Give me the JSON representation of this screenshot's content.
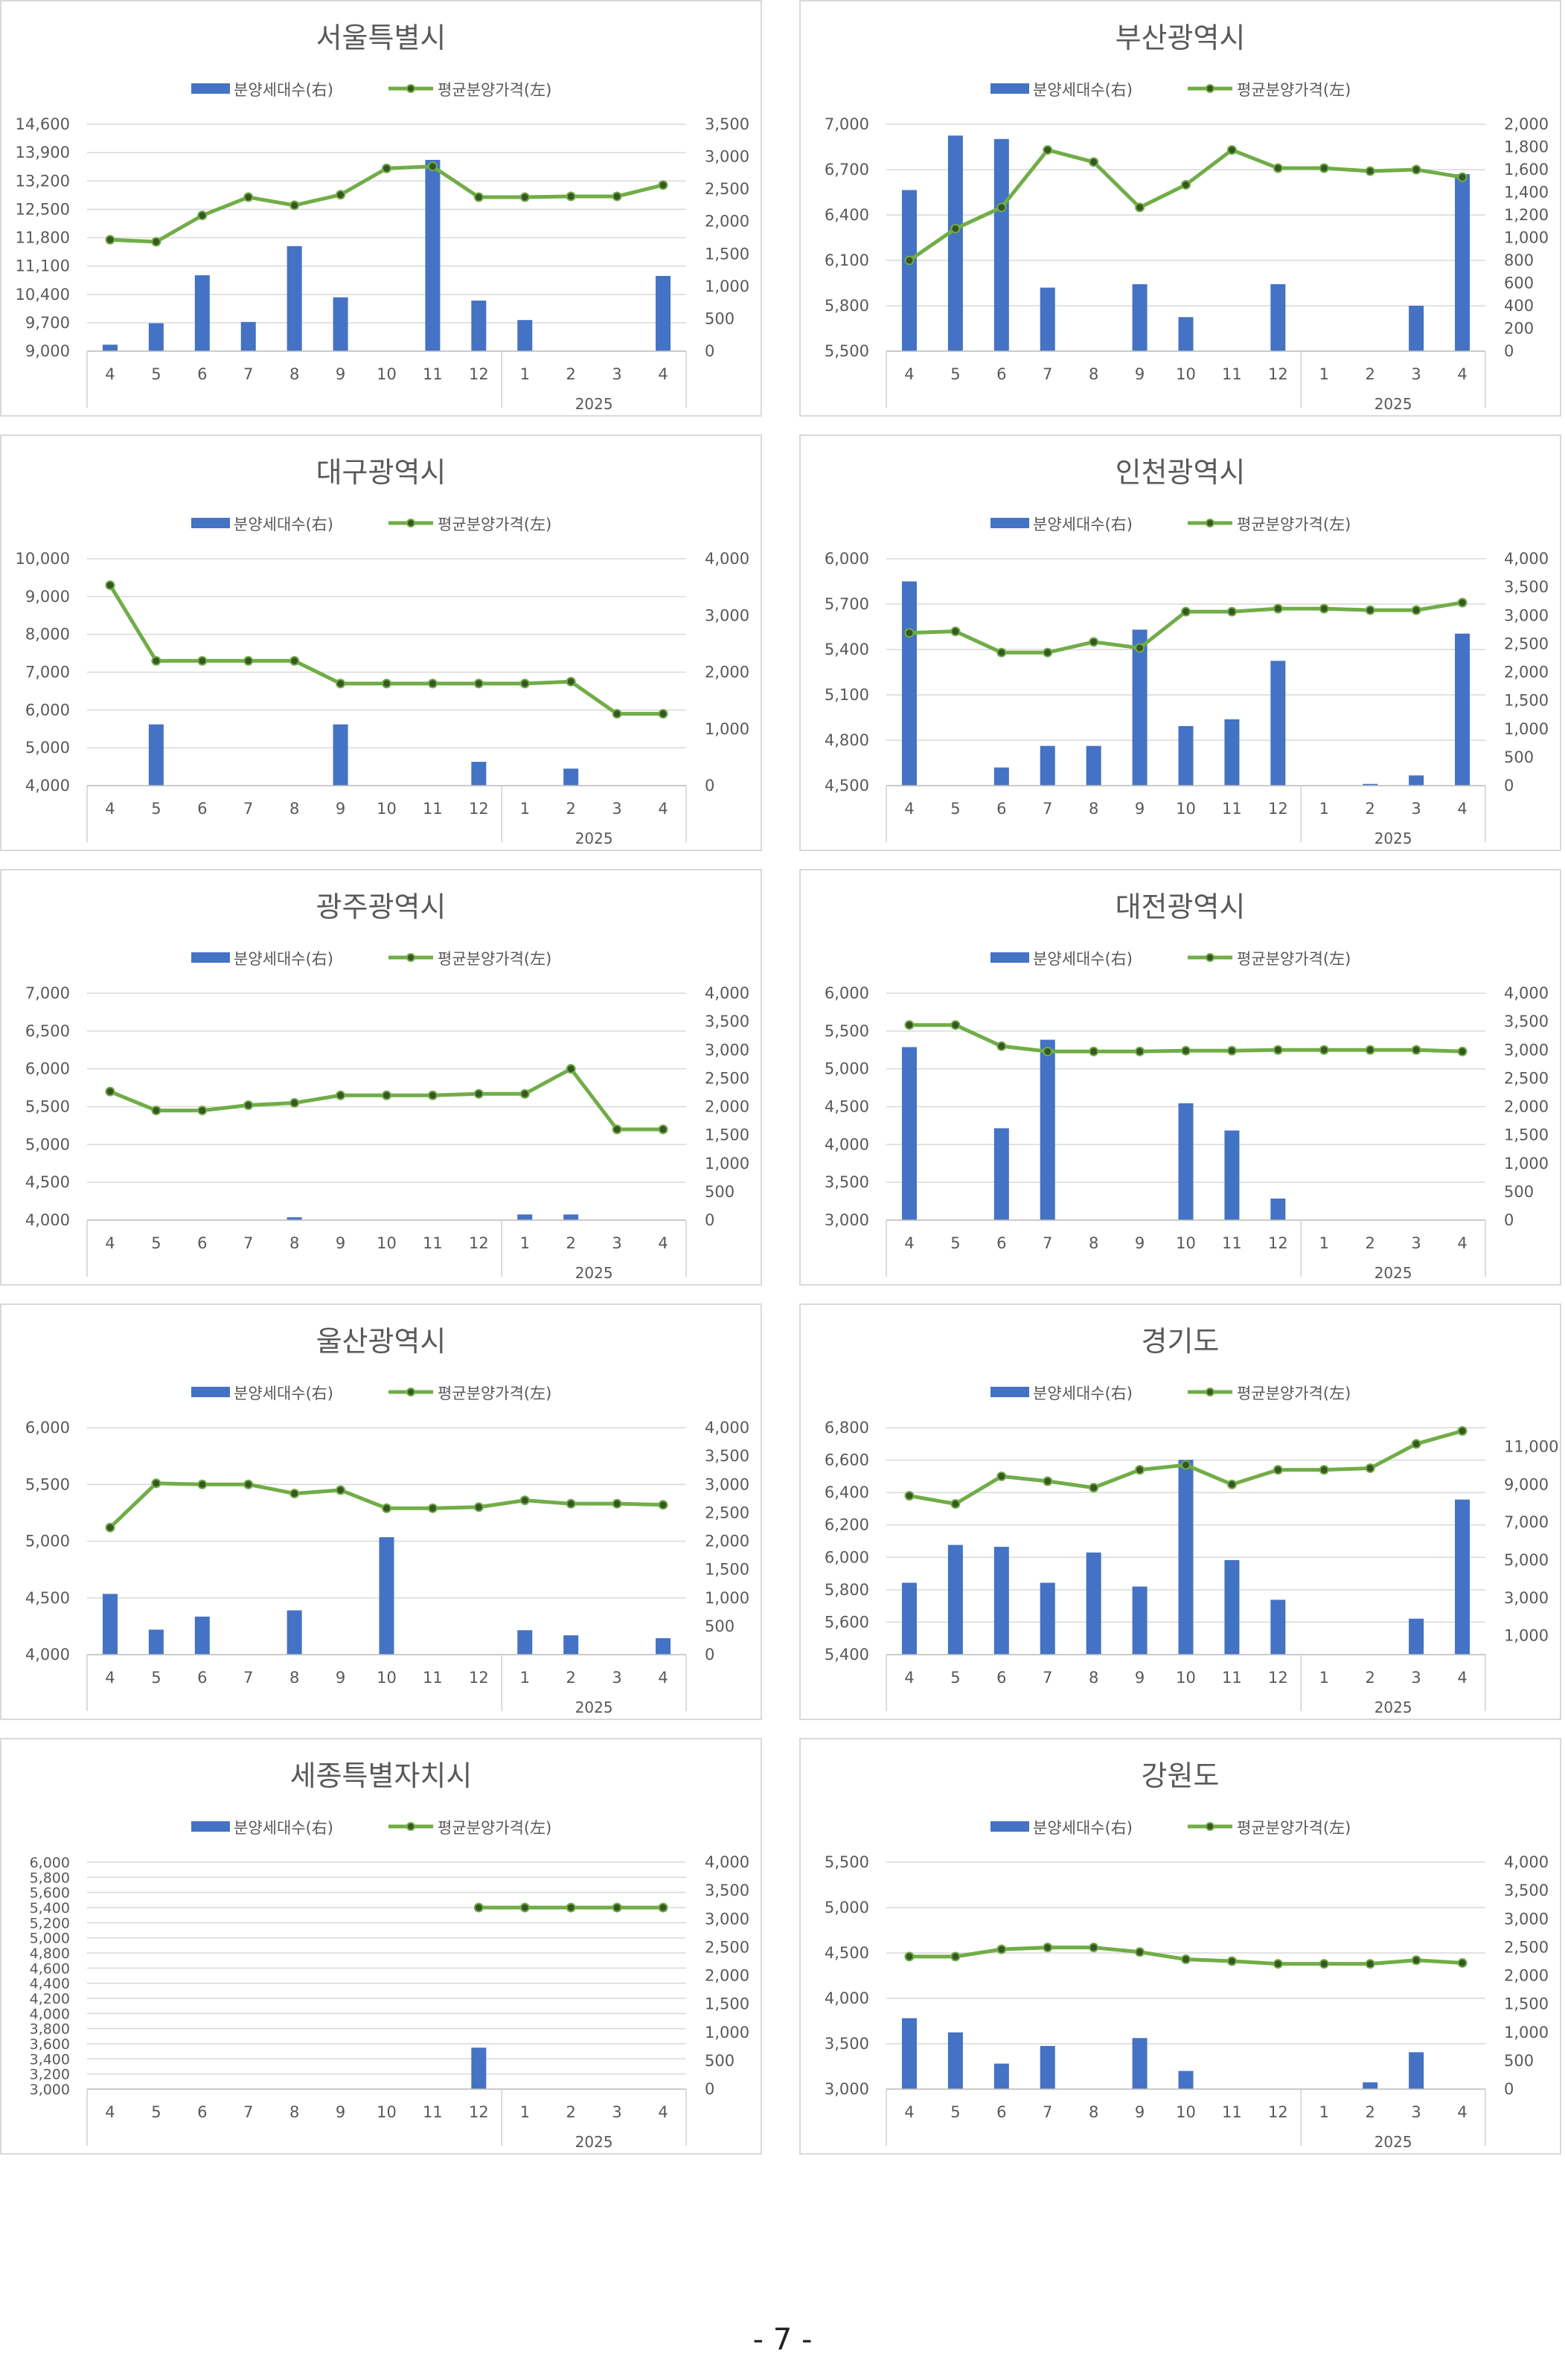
{
  "legend": {
    "bar_label": "분양세대수(右)",
    "line_label": "평균분양가격(左)"
  },
  "colors": {
    "bar": "#4472c4",
    "line": "#70ad47",
    "marker": "#375623",
    "grid": "#d9d9d9",
    "axis_text": "#595959",
    "title": "#595959"
  },
  "page_number": "- 7 -",
  "chart_data": [
    {
      "type": "bar+line",
      "title": "서울특별시",
      "categories": [
        "4",
        "5",
        "6",
        "7",
        "8",
        "9",
        "10",
        "11",
        "12",
        "1",
        "2",
        "3",
        "4"
      ],
      "year_label": "2025",
      "left_axis": {
        "min": 9000,
        "max": 14600,
        "ticks": [
          "9,000",
          "9,700",
          "10,400",
          "11,100",
          "11,800",
          "12,500",
          "13,200",
          "13,900",
          "14,600"
        ]
      },
      "right_axis": {
        "min": 0,
        "max": 3500,
        "ticks": [
          "0",
          "500",
          "1,000",
          "1,500",
          "2,000",
          "2,500",
          "3,000",
          "3,500"
        ]
      },
      "bars": [
        100,
        430,
        1170,
        450,
        1620,
        830,
        0,
        2950,
        780,
        480,
        0,
        0,
        1160
      ],
      "line": [
        11750,
        11700,
        12350,
        12800,
        12600,
        12860,
        13510,
        13560,
        12800,
        12800,
        12820,
        12820,
        13100
      ]
    },
    {
      "type": "bar+line",
      "title": "부산광역시",
      "categories": [
        "4",
        "5",
        "6",
        "7",
        "8",
        "9",
        "10",
        "11",
        "12",
        "1",
        "2",
        "3",
        "4"
      ],
      "year_label": "2025",
      "left_axis": {
        "min": 5500,
        "max": 7000,
        "ticks": [
          "5,500",
          "5,800",
          "6,100",
          "6,400",
          "6,700",
          "7,000"
        ]
      },
      "right_axis": {
        "min": 0,
        "max": 2000,
        "ticks": [
          "0",
          "200",
          "400",
          "600",
          "800",
          "1,000",
          "1,200",
          "1,400",
          "1,600",
          "1,800",
          "2,000"
        ]
      },
      "bars": [
        1420,
        1900,
        1870,
        560,
        0,
        590,
        300,
        0,
        590,
        0,
        0,
        400,
        1560
      ],
      "line": [
        6100,
        6310,
        6450,
        6830,
        6750,
        6450,
        6600,
        6830,
        6710,
        6710,
        6690,
        6700,
        6650
      ]
    },
    {
      "type": "bar+line",
      "title": "대구광역시",
      "categories": [
        "4",
        "5",
        "6",
        "7",
        "8",
        "9",
        "10",
        "11",
        "12",
        "1",
        "2",
        "3",
        "4"
      ],
      "year_label": "2025",
      "left_axis": {
        "min": 4000,
        "max": 10000,
        "ticks": [
          "4,000",
          "5,000",
          "6,000",
          "7,000",
          "8,000",
          "9,000",
          "10,000"
        ]
      },
      "right_axis": {
        "min": 0,
        "max": 4000,
        "ticks": [
          "0",
          "1,000",
          "2,000",
          "3,000",
          "4,000"
        ]
      },
      "bars": [
        0,
        1080,
        0,
        0,
        0,
        1080,
        0,
        0,
        420,
        0,
        300,
        0,
        0
      ],
      "line": [
        9300,
        7300,
        7300,
        7300,
        7300,
        6700,
        6700,
        6700,
        6700,
        6700,
        6750,
        5900,
        5900
      ]
    },
    {
      "type": "bar+line",
      "title": "인천광역시",
      "categories": [
        "4",
        "5",
        "6",
        "7",
        "8",
        "9",
        "10",
        "11",
        "12",
        "1",
        "2",
        "3",
        "4"
      ],
      "year_label": "2025",
      "left_axis": {
        "min": 4500,
        "max": 6000,
        "ticks": [
          "4,500",
          "4,800",
          "5,100",
          "5,400",
          "5,700",
          "6,000"
        ]
      },
      "right_axis": {
        "min": 0,
        "max": 4000,
        "ticks": [
          "0",
          "500",
          "1,000",
          "1,500",
          "2,000",
          "2,500",
          "3,000",
          "3,500",
          "4,000"
        ]
      },
      "bars": [
        3600,
        0,
        320,
        700,
        700,
        2750,
        1050,
        1170,
        2200,
        0,
        30,
        180,
        2680
      ],
      "line": [
        5510,
        5520,
        5380,
        5380,
        5450,
        5410,
        5650,
        5650,
        5670,
        5670,
        5660,
        5660,
        5710
      ]
    },
    {
      "type": "bar+line",
      "title": "광주광역시",
      "categories": [
        "4",
        "5",
        "6",
        "7",
        "8",
        "9",
        "10",
        "11",
        "12",
        "1",
        "2",
        "3",
        "4"
      ],
      "year_label": "2025",
      "left_axis": {
        "min": 4000,
        "max": 7000,
        "ticks": [
          "4,000",
          "4,500",
          "5,000",
          "5,500",
          "6,000",
          "6,500",
          "7,000"
        ]
      },
      "right_axis": {
        "min": 0,
        "max": 4000,
        "ticks": [
          "0",
          "500",
          "1,000",
          "1,500",
          "2,000",
          "2,500",
          "3,000",
          "3,500",
          "4,000"
        ]
      },
      "bars": [
        0,
        0,
        0,
        0,
        50,
        0,
        0,
        0,
        0,
        100,
        100,
        0,
        0
      ],
      "line": [
        5700,
        5450,
        5450,
        5520,
        5550,
        5650,
        5650,
        5650,
        5670,
        5670,
        6000,
        5200,
        5200
      ]
    },
    {
      "type": "bar+line",
      "title": "대전광역시",
      "categories": [
        "4",
        "5",
        "6",
        "7",
        "8",
        "9",
        "10",
        "11",
        "12",
        "1",
        "2",
        "3",
        "4"
      ],
      "year_label": "2025",
      "left_axis": {
        "min": 3000,
        "max": 6000,
        "ticks": [
          "3,000",
          "3,500",
          "4,000",
          "4,500",
          "5,000",
          "5,500",
          "6,000"
        ]
      },
      "right_axis": {
        "min": 0,
        "max": 4000,
        "ticks": [
          "0",
          "500",
          "1,000",
          "1,500",
          "2,000",
          "2,500",
          "3,000",
          "3,500",
          "4,000"
        ]
      },
      "bars": [
        3050,
        0,
        1620,
        3180,
        0,
        0,
        2060,
        1580,
        380,
        0,
        0,
        0,
        0
      ],
      "line": [
        5580,
        5580,
        5300,
        5230,
        5230,
        5230,
        5240,
        5240,
        5250,
        5250,
        5250,
        5250,
        5230
      ]
    },
    {
      "type": "bar+line",
      "title": "울산광역시",
      "categories": [
        "4",
        "5",
        "6",
        "7",
        "8",
        "9",
        "10",
        "11",
        "12",
        "1",
        "2",
        "3",
        "4"
      ],
      "year_label": "2025",
      "left_axis": {
        "min": 4000,
        "max": 6000,
        "ticks": [
          "4,000",
          "4,500",
          "5,000",
          "5,500",
          "6,000"
        ]
      },
      "right_axis": {
        "min": 0,
        "max": 4000,
        "ticks": [
          "0",
          "500",
          "1,000",
          "1,500",
          "2,000",
          "2,500",
          "3,000",
          "3,500",
          "4,000"
        ]
      },
      "bars": [
        1070,
        440,
        670,
        0,
        780,
        0,
        2070,
        0,
        0,
        430,
        340,
        0,
        290
      ],
      "line": [
        5120,
        5510,
        5500,
        5500,
        5420,
        5450,
        5290,
        5290,
        5300,
        5360,
        5330,
        5330,
        5320
      ]
    },
    {
      "type": "bar+line",
      "title": "경기도",
      "categories": [
        "4",
        "5",
        "6",
        "7",
        "8",
        "9",
        "10",
        "11",
        "12",
        "1",
        "2",
        "3",
        "4"
      ],
      "year_label": "2025",
      "left_axis": {
        "min": 5400,
        "max": 6800,
        "ticks": [
          "5,400",
          "5,600",
          "5,800",
          "6,000",
          "6,200",
          "6,400",
          "6,600",
          "6,800"
        ]
      },
      "right_axis": {
        "min": 0,
        "max": 12000,
        "ticks": [
          "1,000",
          "3,000",
          "5,000",
          "7,000",
          "9,000",
          "11,000"
        ]
      },
      "bars": [
        3800,
        5800,
        5700,
        3800,
        5400,
        3600,
        10300,
        5000,
        2900,
        0,
        0,
        1900,
        8200
      ],
      "line": [
        6380,
        6330,
        6500,
        6470,
        6430,
        6540,
        6570,
        6450,
        6540,
        6540,
        6550,
        6700,
        6780
      ]
    },
    {
      "type": "bar+line",
      "title": "세종특별자치시",
      "categories": [
        "4",
        "5",
        "6",
        "7",
        "8",
        "9",
        "10",
        "11",
        "12",
        "1",
        "2",
        "3",
        "4"
      ],
      "year_label": "2025",
      "left_axis": {
        "min": 3000,
        "max": 6000,
        "ticks": [
          "3,000",
          "3,200",
          "3,400",
          "3,600",
          "3,800",
          "4,000",
          "4,200",
          "4,400",
          "4,600",
          "4,800",
          "5,000",
          "5,200",
          "5,400",
          "5,600",
          "5,800",
          "6,000"
        ]
      },
      "right_axis": {
        "min": 0,
        "max": 4000,
        "ticks": [
          "0",
          "500",
          "1,000",
          "1,500",
          "2,000",
          "2,500",
          "3,000",
          "3,500",
          "4,000"
        ]
      },
      "bars": [
        0,
        0,
        0,
        0,
        0,
        0,
        0,
        0,
        730,
        0,
        0,
        0,
        0
      ],
      "line": [
        null,
        null,
        null,
        null,
        null,
        null,
        null,
        null,
        5400,
        5400,
        5400,
        5400,
        5400
      ]
    },
    {
      "type": "bar+line",
      "title": "강원도",
      "categories": [
        "4",
        "5",
        "6",
        "7",
        "8",
        "9",
        "10",
        "11",
        "12",
        "1",
        "2",
        "3",
        "4"
      ],
      "year_label": "2025",
      "left_axis": {
        "min": 3000,
        "max": 5500,
        "ticks": [
          "3,000",
          "3,500",
          "4,000",
          "4,500",
          "5,000",
          "5,500"
        ]
      },
      "right_axis": {
        "min": 0,
        "max": 4000,
        "ticks": [
          "0",
          "500",
          "1,000",
          "1,500",
          "2,000",
          "2,500",
          "3,000",
          "3,500",
          "4,000"
        ]
      },
      "bars": [
        1250,
        1000,
        450,
        760,
        0,
        900,
        320,
        0,
        0,
        0,
        120,
        650,
        0
      ],
      "line": [
        4460,
        4460,
        4540,
        4560,
        4560,
        4510,
        4430,
        4410,
        4380,
        4380,
        4380,
        4420,
        4390
      ]
    }
  ]
}
